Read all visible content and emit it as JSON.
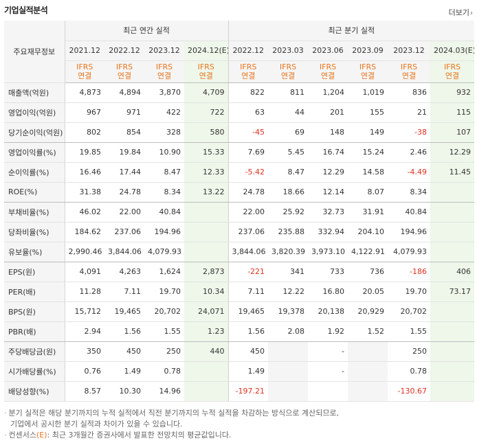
{
  "header": {
    "title": "기업실적분석",
    "more": "더보기"
  },
  "table": {
    "row_header": "주요재무정보",
    "group_annual": "최근 연간 실적",
    "group_quarterly": "최근 분기 실적",
    "periods": [
      "2021.12",
      "2022.12",
      "2023.12",
      "2024.12(E)",
      "2022.12",
      "2023.03",
      "2023.06",
      "2023.09",
      "2023.12",
      "2024.03(E)"
    ],
    "basis_top": "IFRS",
    "basis_bottom": "연결",
    "rows": [
      {
        "label": "매출액(억원)",
        "values": [
          "4,873",
          "4,894",
          "3,870",
          "4,709",
          "822",
          "811",
          "1,204",
          "1,019",
          "836",
          "932"
        ]
      },
      {
        "label": "영업이익(억원)",
        "values": [
          "967",
          "971",
          "422",
          "722",
          "63",
          "44",
          "201",
          "155",
          "21",
          "115"
        ]
      },
      {
        "label": "당기순이익(억원)",
        "values": [
          "802",
          "854",
          "328",
          "580",
          "-45",
          "69",
          "148",
          "149",
          "-38",
          "107"
        ]
      },
      {
        "label": "영업이익률(%)",
        "values": [
          "19.85",
          "19.84",
          "10.90",
          "15.33",
          "7.69",
          "5.45",
          "16.74",
          "15.24",
          "2.46",
          "12.29"
        ]
      },
      {
        "label": "순이익률(%)",
        "values": [
          "16.46",
          "17.44",
          "8.47",
          "12.33",
          "-5.42",
          "8.47",
          "12.29",
          "14.58",
          "-4.49",
          "11.45"
        ]
      },
      {
        "label": "ROE(%)",
        "values": [
          "31.38",
          "24.78",
          "8.34",
          "13.22",
          "24.78",
          "18.66",
          "12.14",
          "8.07",
          "8.34",
          ""
        ]
      },
      {
        "label": "부채비율(%)",
        "values": [
          "46.02",
          "22.00",
          "40.84",
          "",
          "22.00",
          "25.92",
          "32.73",
          "31.91",
          "40.84",
          ""
        ]
      },
      {
        "label": "당좌비율(%)",
        "values": [
          "184.62",
          "237.06",
          "194.96",
          "",
          "237.06",
          "235.88",
          "332.94",
          "204.10",
          "194.96",
          ""
        ]
      },
      {
        "label": "유보율(%)",
        "values": [
          "2,990.46",
          "3,844.06",
          "4,079.93",
          "",
          "3,844.06",
          "3,820.39",
          "3,973.10",
          "4,122.91",
          "4,079.93",
          ""
        ]
      },
      {
        "label": "EPS(원)",
        "values": [
          "4,091",
          "4,263",
          "1,624",
          "2,873",
          "-221",
          "341",
          "733",
          "736",
          "-186",
          "406"
        ]
      },
      {
        "label": "PER(배)",
        "values": [
          "11.28",
          "7.11",
          "19.70",
          "10.34",
          "7.11",
          "12.22",
          "16.80",
          "20.05",
          "19.70",
          "73.17"
        ]
      },
      {
        "label": "BPS(원)",
        "values": [
          "15,712",
          "19,465",
          "20,702",
          "24,071",
          "19,465",
          "19,378",
          "20,138",
          "20,929",
          "20,702",
          ""
        ]
      },
      {
        "label": "PBR(배)",
        "values": [
          "2.94",
          "1.56",
          "1.55",
          "1.23",
          "1.56",
          "2.08",
          "1.92",
          "1.52",
          "1.55",
          ""
        ]
      },
      {
        "label": "주당배당금(원)",
        "values": [
          "350",
          "450",
          "250",
          "440",
          "450",
          "",
          "-",
          "",
          "250",
          ""
        ]
      },
      {
        "label": "시가배당률(%)",
        "values": [
          "0.76",
          "1.49",
          "0.78",
          "",
          "1.49",
          "",
          "-",
          "",
          "0.78",
          ""
        ]
      },
      {
        "label": "배당성향(%)",
        "values": [
          "8.57",
          "10.30",
          "14.96",
          "",
          "-197.21",
          "",
          "",
          "",
          "-130.67",
          ""
        ]
      }
    ]
  },
  "notes": {
    "line1": "분기 실적은 해당 분기까지의 누적 실적에서 직전 분기까지의 누적 실적을 차감하는 방식으로 계산되므로,",
    "line2": "기업에서 공시한 분기 실적과 차이가 있을 수 있습니다.",
    "line3_prefix": "컨센서스",
    "line3_e": "(E)",
    "line3_rest": ": 최근 3개월간 증권사에서 발표한 전망치의 평균값입니다."
  },
  "colors": {
    "estimate_bg": "#eef7ea",
    "negative": "#e0301e",
    "ifrs": "#e8741c",
    "label_bg": "#f5f5f5"
  }
}
